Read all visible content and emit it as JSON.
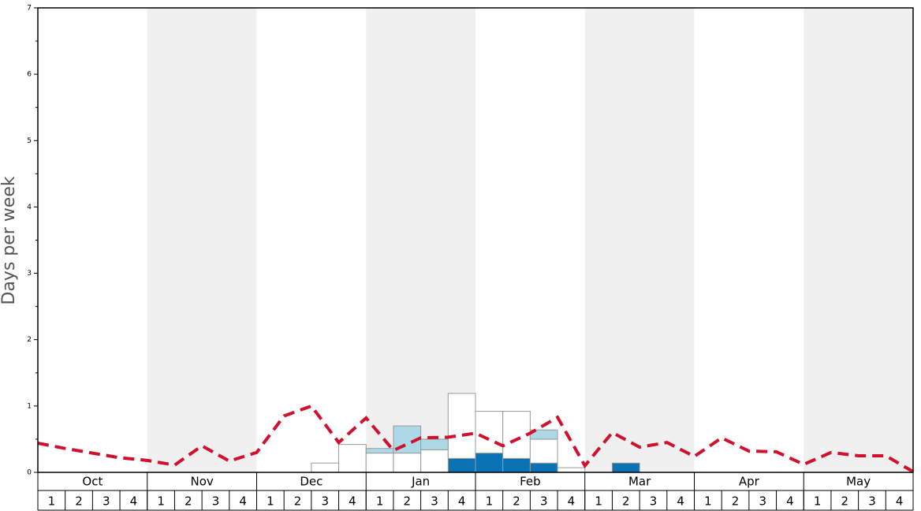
{
  "chart_data": {
    "type": "bar",
    "y_label": "Days per week",
    "months": [
      "Oct",
      "Nov",
      "Dec",
      "Jan",
      "Feb",
      "Mar",
      "Apr",
      "May"
    ],
    "categories": [
      "1",
      "2",
      "3",
      "4",
      "1",
      "2",
      "3",
      "4",
      "1",
      "2",
      "3",
      "4",
      "1",
      "2",
      "3",
      "4",
      "1",
      "2",
      "3",
      "4",
      "1",
      "2",
      "3",
      "4",
      "1",
      "2",
      "3",
      "4",
      "1",
      "2",
      "3",
      "4"
    ],
    "xlim": [
      0,
      32
    ],
    "ylim": [
      0,
      7
    ],
    "yticks": [
      0,
      1,
      2,
      3,
      4,
      5,
      6,
      7
    ],
    "stacked": true,
    "series": [
      {
        "type": "bar",
        "color": "#0a72b5",
        "values": [
          0,
          0,
          0,
          0,
          0,
          0,
          0,
          0,
          0,
          0,
          0,
          0,
          0,
          0,
          0,
          0.21,
          0.29,
          0.21,
          0.14,
          0,
          0,
          0.14,
          0,
          0,
          0,
          0,
          0,
          0,
          0,
          0,
          0,
          0
        ]
      },
      {
        "type": "bar",
        "color": "#ffffff",
        "values": [
          0,
          0,
          0,
          0,
          0,
          0,
          0,
          0,
          0,
          0,
          0.14,
          0.42,
          0.29,
          0.29,
          0.34,
          0.98,
          0.63,
          0.71,
          0.36,
          0.07,
          0,
          0,
          0,
          0,
          0,
          0,
          0,
          0,
          0,
          0,
          0,
          0
        ]
      },
      {
        "type": "bar",
        "color": "#add8e6",
        "values": [
          0,
          0,
          0,
          0,
          0,
          0,
          0,
          0,
          0,
          0,
          0,
          0,
          0.07,
          0.41,
          0.16,
          0,
          0,
          0,
          0.14,
          0,
          0,
          0,
          0,
          0,
          0,
          0,
          0,
          0,
          0,
          0,
          0,
          0
        ]
      },
      {
        "type": "line",
        "color": "#d0102c",
        "x": [
          0,
          1,
          2,
          3,
          4,
          5,
          6,
          7,
          8,
          9,
          10,
          11,
          12,
          13,
          14,
          15,
          16,
          17,
          18,
          19,
          20,
          21,
          22,
          23,
          24,
          25,
          26,
          27,
          28,
          29,
          30,
          31,
          32
        ],
        "values": [
          0.44,
          0.36,
          0.29,
          0.22,
          0.18,
          0.11,
          0.4,
          0.17,
          0.3,
          0.85,
          1.0,
          0.45,
          0.82,
          0.33,
          0.52,
          0.53,
          0.59,
          0.4,
          0.59,
          0.83,
          0.1,
          0.6,
          0.38,
          0.45,
          0.24,
          0.52,
          0.32,
          0.31,
          0.12,
          0.3,
          0.25,
          0.25,
          0.01
        ]
      }
    ]
  }
}
